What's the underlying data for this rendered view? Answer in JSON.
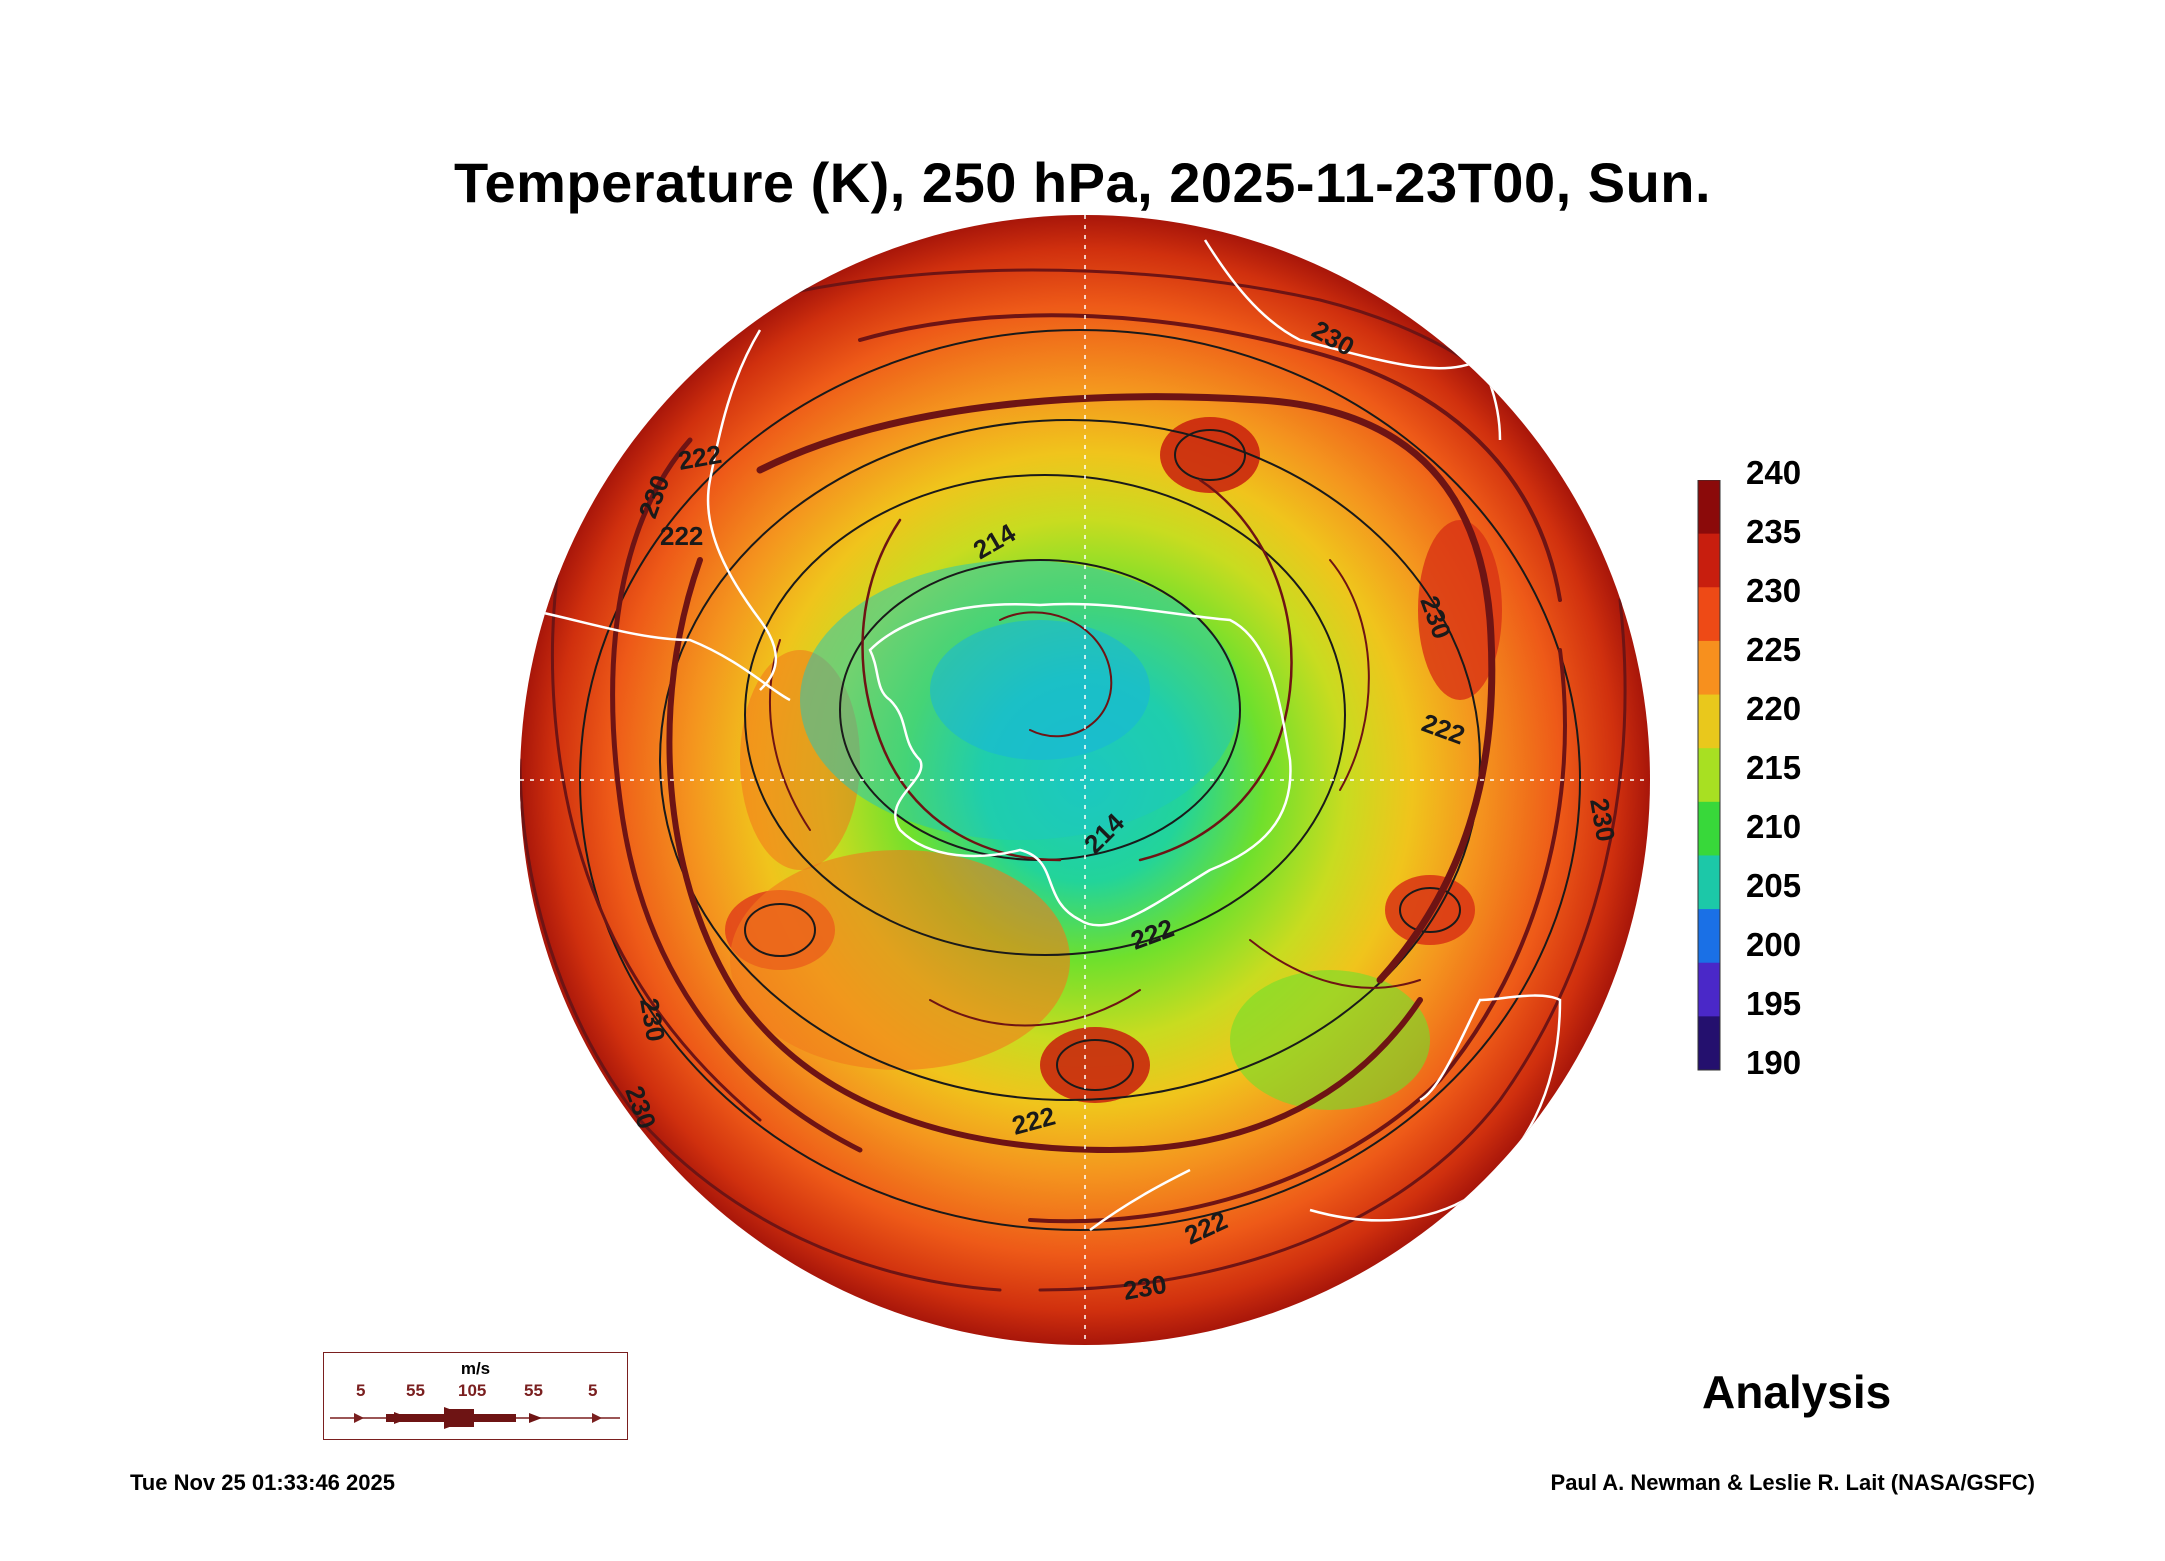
{
  "title": "Temperature (K), 250 hPa, 2025-11-23T00, Sun.",
  "colorbar": {
    "labels": [
      "240",
      "235",
      "230",
      "225",
      "220",
      "215",
      "210",
      "205",
      "200",
      "195",
      "190"
    ],
    "colors": [
      "#8b0a0a",
      "#c81e0e",
      "#ee4a16",
      "#f7901e",
      "#e9c81c",
      "#a8e022",
      "#38d83a",
      "#1cc8a8",
      "#1a70e6",
      "#4a28c8",
      "#24106e"
    ]
  },
  "contour_labels": [
    "230",
    "222",
    "214",
    "230",
    "222",
    "214",
    "222",
    "222",
    "230",
    "230",
    "222",
    "230",
    "230",
    "222",
    "230"
  ],
  "legend": {
    "unit": "m/s",
    "speeds": [
      "5",
      "55",
      "105",
      "55",
      "5"
    ]
  },
  "analysis_label": "Analysis",
  "timestamp": "Tue Nov 25 01:33:46 2025",
  "credit": "Paul A. Newman & Leslie R. Lait (NASA/GSFC)",
  "colors": {
    "coastline": "#ffffff",
    "streamline": "#6e1414",
    "contour": "#1a1a1a",
    "legend_border": "#7a1f1f"
  }
}
